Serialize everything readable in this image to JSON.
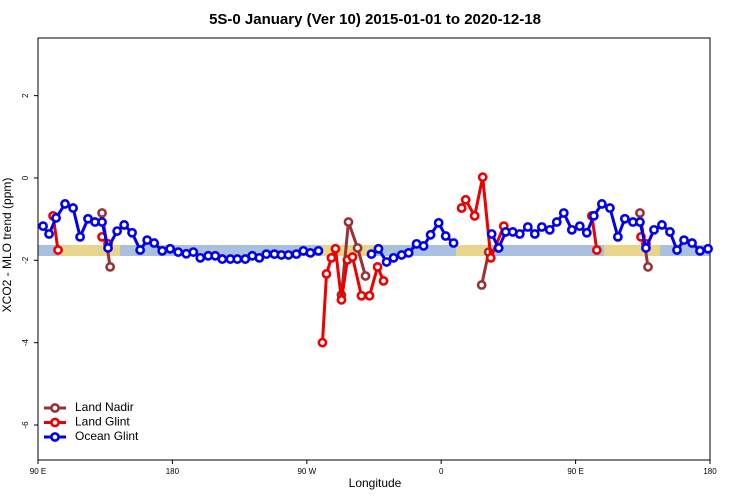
{
  "chart_data": {
    "type": "line",
    "title": "5S-0 January (Ver 10)   2015-01-01 to 2020-12-18",
    "x_label": "Longitude",
    "y_label": "XCO2 - MLO trend (ppm)",
    "xlim": [
      90,
      540
    ],
    "xticks": [
      {
        "value": 90,
        "label": "90 E"
      },
      {
        "value": 180,
        "label": "180"
      },
      {
        "value": 270,
        "label": "90 W"
      },
      {
        "value": 360,
        "label": "0"
      },
      {
        "value": 450,
        "label": "90 E"
      },
      {
        "value": 540,
        "label": "180"
      }
    ],
    "ylim": [
      -6.85,
      3.4
    ],
    "yticks": [
      -6,
      -4,
      -2,
      0,
      2
    ],
    "legend": "bottom-left",
    "series": [
      {
        "name": "Land Nadir",
        "color": "#993333",
        "x": [
          132.9,
          138.3,
          200,
          293.2,
          297.9,
          304.0,
          309.3,
          340,
          373.7,
          380,
          387.1,
          391.8,
          450,
          493.1,
          498.5
        ],
        "values": [
          -0.85,
          -2.16,
          null,
          -2.84,
          -1.07,
          -1.7,
          -2.38,
          null,
          -0.73,
          null,
          -2.6,
          -1.8,
          null,
          -0.85,
          -2.16
        ]
      },
      {
        "name": "Land Glint",
        "color": "#ee0000",
        "x": [
          100.1,
          103.4,
          115,
          132.9,
          136.9,
          200,
          280.5,
          283.2,
          286.5,
          289.2,
          293.2,
          297.2,
          300.6,
          306.6,
          312.0,
          317.4,
          321.4,
          340,
          373.7,
          376.4,
          382.4,
          387.8,
          393.2,
          401.9,
          430,
          460.9,
          464.2,
          480,
          493.8,
          497.1
        ],
        "values": [
          -0.92,
          -1.75,
          null,
          -1.43,
          -1.6,
          null,
          -4.0,
          -2.33,
          -1.94,
          -1.72,
          -2.96,
          -1.99,
          -1.92,
          -2.86,
          -2.86,
          -2.16,
          -2.5,
          null,
          -0.73,
          -0.53,
          -0.92,
          0.02,
          -1.94,
          -1.17,
          null,
          -0.92,
          -1.75,
          null,
          -1.43,
          -1.6
        ]
      },
      {
        "name": "Ocean Glint",
        "color": "#0000ee",
        "x": [
          93.4,
          97.4,
          102.1,
          108.1,
          113.5,
          118.2,
          123.5,
          128.2,
          132.9,
          136.9,
          143.0,
          147.7,
          153.0,
          158.4,
          163.1,
          167.8,
          173.2,
          178.5,
          183.9,
          189.3,
          194.0,
          198.7,
          204.0,
          208.7,
          213.4,
          218.8,
          223.5,
          228.8,
          233.5,
          238.2,
          242.9,
          248.3,
          253.0,
          257.7,
          263.0,
          267.7,
          272.4,
          277.8,
          300,
          313.3,
          318.0,
          323.4,
          328.1,
          333.5,
          338.2,
          343.5,
          348.2,
          352.9,
          358.3,
          363.0,
          368.3,
          380,
          393.8,
          398.5,
          403.2,
          407.9,
          412.6,
          418.0,
          422.7,
          427.4,
          432.7,
          437.4,
          442.1,
          447.5,
          452.8,
          457.5,
          462.2,
          467.6,
          473.0,
          478.3,
          483.0,
          488.4,
          493.1,
          497.1,
          502.5,
          507.8,
          513.2,
          517.9,
          522.6,
          528.0,
          533.3,
          538.7
        ],
        "values": [
          -1.17,
          -1.36,
          -0.97,
          -0.63,
          -0.73,
          -1.43,
          -0.99,
          -1.07,
          -1.07,
          -1.7,
          -1.29,
          -1.14,
          -1.33,
          -1.75,
          -1.51,
          -1.58,
          -1.77,
          -1.72,
          -1.8,
          -1.84,
          -1.8,
          -1.94,
          -1.89,
          -1.89,
          -1.97,
          -1.97,
          -1.97,
          -1.97,
          -1.89,
          -1.94,
          -1.85,
          -1.85,
          -1.87,
          -1.87,
          -1.85,
          -1.77,
          -1.82,
          -1.77,
          null,
          -1.85,
          -1.72,
          -2.04,
          -1.94,
          -1.87,
          -1.82,
          -1.6,
          -1.65,
          -1.38,
          -1.09,
          -1.41,
          -1.58,
          null,
          -1.36,
          -1.7,
          -1.31,
          -1.31,
          -1.36,
          -1.19,
          -1.36,
          -1.19,
          -1.26,
          -1.07,
          -0.85,
          -1.26,
          -1.17,
          -1.33,
          -0.92,
          -0.63,
          -0.73,
          -1.43,
          -0.99,
          -1.07,
          -1.07,
          -1.7,
          -1.26,
          -1.14,
          -1.31,
          -1.75,
          -1.51,
          -1.58,
          -1.77,
          -1.72
        ]
      }
    ]
  }
}
